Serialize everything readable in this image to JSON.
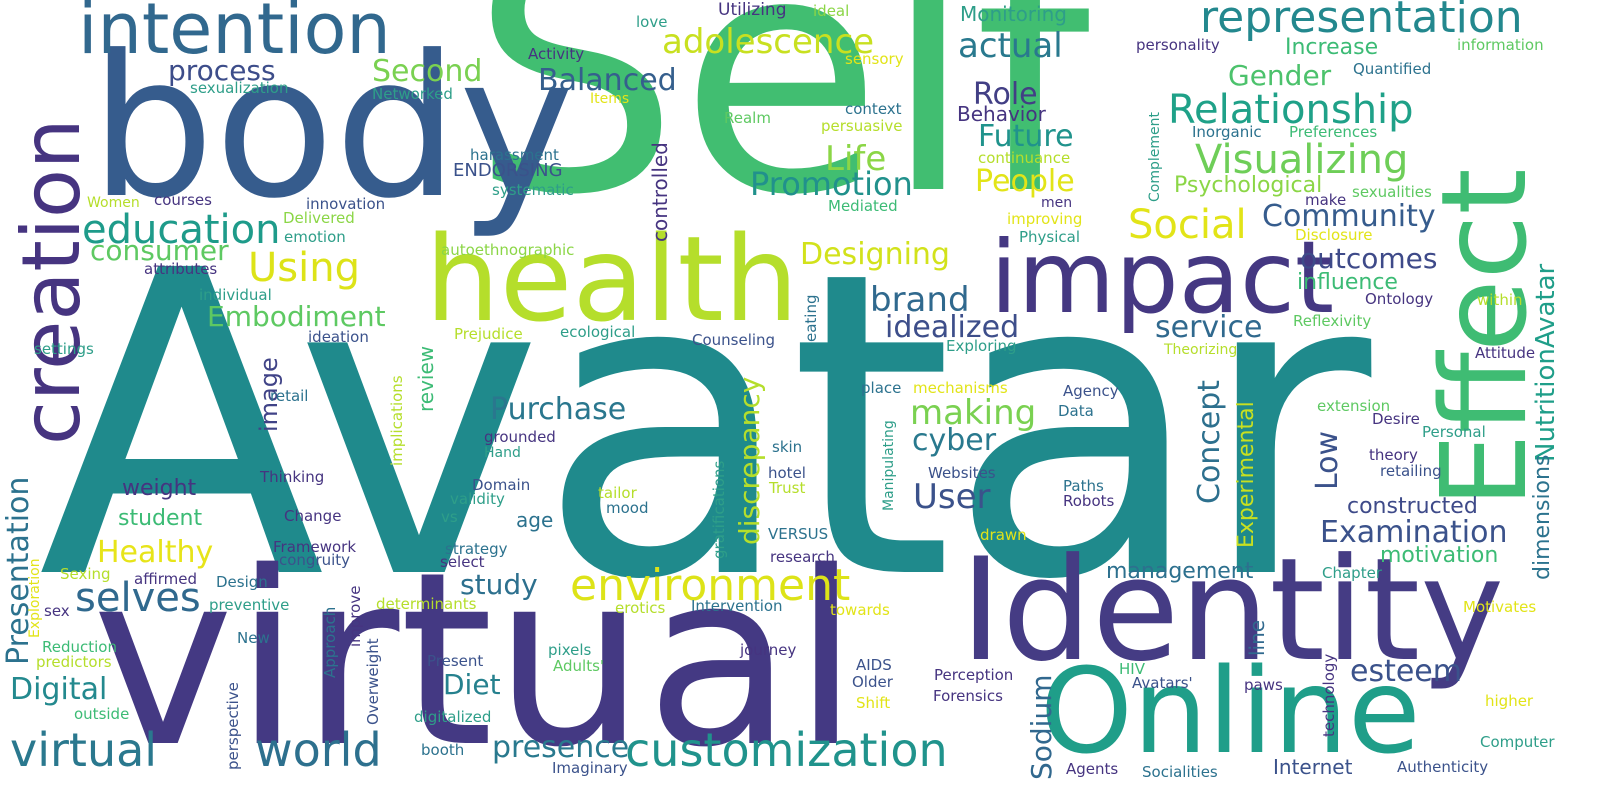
{
  "palette": {
    "dark_purple": "#44146e",
    "indigo": "#443a83",
    "slate_blue": "#3b528b",
    "steel_blue": "#31688e",
    "teal": "#26828e",
    "sea_green": "#1f9e89",
    "green": "#35b779",
    "light_green": "#6ece58",
    "lime": "#b5de2b",
    "yellow": "#e6e418"
  },
  "words": [
    "Avatar",
    "Self",
    "virtual",
    "Identity",
    "body",
    "health",
    "Online",
    "Effect",
    "impact",
    "creation",
    "intention",
    "customization",
    "environment",
    "representation",
    "Relationship",
    "Visualizing",
    "world",
    "education",
    "adolescence",
    "selves",
    "Using",
    "Social",
    "Promotion",
    "Embodiment",
    "actual",
    "Second",
    "Balanced",
    "process",
    "Role",
    "Future",
    "Life",
    "People",
    "Community",
    "outcomes",
    "Gender",
    "Designing",
    "brand",
    "idealized",
    "making",
    "cyber",
    "User",
    "discrepancy",
    "Purchase",
    "Concept",
    "Examination",
    "constructed",
    "Experimental",
    "Presentation",
    "Digital",
    "Healthy",
    "esteem",
    "presence",
    "study",
    "Diet",
    "NutritionAvatar",
    "dimensions",
    "service",
    "image",
    "review",
    "weight",
    "student",
    "motivation",
    "management",
    "Low",
    "Sodium",
    "consumer",
    "influence",
    "Psychological",
    "Increase",
    "Monitoring",
    "Utilizing",
    "ideal",
    "love",
    "Activity",
    "Items",
    "sensory",
    "Networked",
    "sexualization",
    "Quantified",
    "personality",
    "information",
    "Realm",
    "persuasive",
    "context",
    "Behavior",
    "controlled",
    "harassment",
    "ENDORSING",
    "systematic",
    "innovation",
    "courses",
    "Women",
    "Delivered",
    "emotion",
    "autoethnographic",
    "attributes",
    "individual",
    "Prejudice",
    "ecological",
    "ideation",
    "settings",
    "Counseling",
    "eating",
    "Exploring",
    "Theorizing",
    "Attitude",
    "Ontology",
    "Reflexivity",
    "within",
    "Complement",
    "Inorganic",
    "Preferences",
    "continuance",
    "men",
    "make",
    "improving",
    "Physical",
    "Disclosure",
    "sexualities",
    "Mediated",
    "vs",
    "validity",
    "Domain",
    "tailor",
    "mood",
    "Trust",
    "hotel",
    "skin",
    "Thinking",
    "retail",
    "implications",
    "grounded",
    "Hand",
    "gratifications",
    "Manipulating",
    "place",
    "mechanisms",
    "Agency",
    "Data",
    "Websites",
    "Paths",
    "Robots",
    "extension",
    "Desire",
    "Personal",
    "theory",
    "retailing",
    "Change",
    "Framework",
    "congruity",
    "affirmed",
    "Design",
    "preventive",
    "Sexing",
    "Exploration",
    "sex",
    "Reduction",
    "predictors",
    "outside",
    "strategy",
    "select",
    "age",
    "research",
    "VERSUS",
    "drawn",
    "Chapter",
    "Motivates",
    "determinants",
    "erotics",
    "Intervention",
    "towards",
    "Approach",
    "improve",
    "Overweight",
    "New",
    "perspective",
    "Present",
    "pixels",
    "Adults'",
    "journey",
    "AIDS",
    "Older",
    "Shift",
    "Perception",
    "Forensics",
    "HIV",
    "Avatars'",
    "paws",
    "line",
    "technology",
    "higher",
    "digitalized",
    "booth",
    "Imaginary",
    "Agents",
    "Socialities",
    "Internet",
    "Authenticity",
    "Computer"
  ]
}
